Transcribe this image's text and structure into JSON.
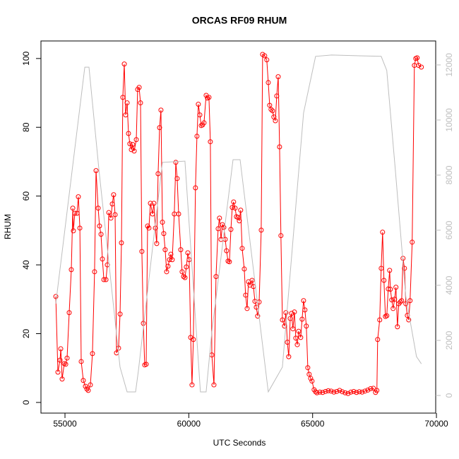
{
  "chart_data": {
    "type": "line",
    "title": "ORCAS RF09 RHUM",
    "x_label": "UTC Seconds",
    "y_label": "RHUM",
    "xlim": [
      54030,
      69970
    ],
    "xticks": [
      55000,
      60000,
      65000,
      70000
    ],
    "ylim": [
      -3.1,
      105.1
    ],
    "yticks": [
      0,
      20,
      40,
      60,
      80,
      100
    ],
    "y2lim": [
      -640,
      12870
    ],
    "y2ticks": [
      0,
      2000,
      4000,
      6000,
      8000,
      10000,
      12000
    ],
    "y2_color": "#bebebe",
    "series": [
      {
        "color": "#ff0000",
        "markers": true,
        "x": [
          54630,
          54715,
          54800,
          54830,
          54885,
          54970,
          55030,
          55085,
          55170,
          55255,
          55315,
          55340,
          55400,
          55485,
          55540,
          55600,
          55655,
          55740,
          55825,
          55885,
          55940,
          56025,
          56110,
          56195,
          56255,
          56340,
          56395,
          56455,
          56510,
          56570,
          56655,
          56710,
          56770,
          56855,
          56910,
          56965,
          57025,
          57080,
          57165,
          57225,
          57280,
          57335,
          57395,
          57450,
          57510,
          57565,
          57620,
          57680,
          57735,
          57795,
          57880,
          57935,
          57995,
          58050,
          58105,
          58165,
          58220,
          58280,
          58335,
          58390,
          58450,
          58535,
          58590,
          58650,
          58705,
          58760,
          58820,
          58875,
          58935,
          58990,
          59045,
          59105,
          59160,
          59220,
          59275,
          59330,
          59415,
          59475,
          59530,
          59590,
          59675,
          59730,
          59790,
          59845,
          59900,
          59960,
          60015,
          60075,
          60130,
          60185,
          60270,
          60330,
          60385,
          60445,
          60500,
          60555,
          60615,
          60700,
          60755,
          60815,
          60870,
          60930,
          61015,
          61100,
          61185,
          61240,
          61300,
          61355,
          61415,
          61470,
          61525,
          61585,
          61640,
          61700,
          61755,
          61810,
          61870,
          61925,
          61985,
          62040,
          62095,
          62155,
          62240,
          62295,
          62355,
          62410,
          62470,
          62555,
          62610,
          62670,
          62725,
          62780,
          62840,
          62925,
          62980,
          63065,
          63150,
          63210,
          63265,
          63320,
          63380,
          63435,
          63495,
          63550,
          63610,
          63665,
          63720,
          63780,
          63865,
          63920,
          63980,
          64035,
          64095,
          64150,
          64205,
          64265,
          64320,
          64380,
          64435,
          64520,
          64575,
          64635,
          64690,
          64745,
          64805,
          64860,
          64920,
          64975,
          65060,
          65120,
          65175,
          65290,
          65405,
          65520,
          65630,
          65745,
          65860,
          65975,
          66090,
          66200,
          66315,
          66430,
          66545,
          66660,
          66770,
          66885,
          67000,
          67115,
          67230,
          67340,
          67455,
          67540,
          67595,
          67625,
          67710,
          67770,
          67825,
          67880,
          67940,
          67995,
          68055,
          68110,
          68140,
          68195,
          68250,
          68310,
          68365,
          68425,
          68480,
          68540,
          68595,
          68650,
          68710,
          68765,
          68825,
          68880,
          68935,
          69020,
          69110,
          69165,
          69220,
          69280,
          69390
        ],
        "values": [
          30.8,
          8.8,
          12.3,
          15.6,
          6.8,
          11.3,
          11.1,
          12.9,
          26.1,
          38.6,
          56.5,
          49.9,
          55,
          55,
          59.8,
          50.7,
          11.9,
          6.4,
          4.7,
          3.9,
          3.5,
          5.1,
          14.2,
          38,
          67.4,
          56.5,
          51.3,
          48.9,
          41.7,
          35.7,
          35.7,
          40,
          55.2,
          53.6,
          57.7,
          60.4,
          54.6,
          14.4,
          15.8,
          25.7,
          46.4,
          88.7,
          98.4,
          83.6,
          87.1,
          78.2,
          75.2,
          73.5,
          75,
          73.1,
          76.4,
          91,
          91.6,
          87.1,
          43.9,
          23,
          10.9,
          11.1,
          51.3,
          50.7,
          57.9,
          54.8,
          57.9,
          50.7,
          46.2,
          66.5,
          79.9,
          85,
          52.4,
          49.1,
          44.4,
          38,
          39.6,
          41.5,
          43.1,
          41.5,
          54.8,
          69.8,
          65.1,
          54.8,
          44.4,
          38,
          36.6,
          36.3,
          39.4,
          43.5,
          41.5,
          18.9,
          5.1,
          18.3,
          62.4,
          77.4,
          86.7,
          83.6,
          80.5,
          80.7,
          81.3,
          89.3,
          88.5,
          88.7,
          75.8,
          13.8,
          5.1,
          36.6,
          50.5,
          53.6,
          47.4,
          51.7,
          50.9,
          47.4,
          44.1,
          41.1,
          40.9,
          50.3,
          56.7,
          58.3,
          56.5,
          54,
          53.8,
          52.8,
          55.9,
          44.8,
          38.8,
          31.2,
          27.3,
          35.1,
          34.1,
          35.5,
          33.7,
          29.4,
          27.7,
          25.1,
          29.2,
          50.1,
          101.2,
          100.8,
          99.6,
          93,
          86.4,
          85.2,
          84.8,
          83,
          81.9,
          89.1,
          94.7,
          74.3,
          48.5,
          24,
          22.2,
          26.1,
          17.5,
          13.3,
          24.4,
          25.9,
          21.4,
          26.3,
          18.7,
          16.8,
          20.7,
          18.9,
          24.2,
          29.6,
          26.9,
          22.2,
          10.1,
          8.2,
          7,
          6.2,
          3.7,
          3.1,
          2.8,
          3,
          2.9,
          3.2,
          3.4,
          3.3,
          3,
          3.2,
          3.5,
          3.1,
          2.8,
          2.6,
          3,
          3.2,
          2.9,
          3.1,
          3,
          3.3,
          3.6,
          4,
          4.1,
          2.9,
          3.5,
          18.3,
          24,
          39,
          49.5,
          35.5,
          25,
          25.2,
          33,
          38.4,
          32.9,
          29.8,
          27.3,
          30,
          33.5,
          22,
          28.7,
          29.2,
          29.6,
          41.9,
          39,
          28.7,
          25.3,
          24,
          29.6,
          46.6,
          98,
          100,
          100.2,
          98,
          97.5
        ]
      },
      {
        "color": "#bebebe",
        "axis": "y2",
        "markers": false,
        "x": [
          54630,
          55800,
          55970,
          56370,
          57225,
          57510,
          57850,
          57965,
          58935,
          59845,
          60470,
          60700,
          60930,
          61785,
          62070,
          63210,
          63780,
          64635,
          65120,
          65770,
          67770,
          67995,
          68340,
          68765,
          69195,
          69390
        ],
        "values": [
          3330,
          11920,
          11920,
          8200,
          1030,
          130,
          130,
          900,
          8460,
          8510,
          130,
          130,
          2310,
          8560,
          8560,
          130,
          1030,
          10260,
          12310,
          12360,
          12310,
          11800,
          8200,
          3590,
          1410,
          1150
        ]
      }
    ]
  }
}
